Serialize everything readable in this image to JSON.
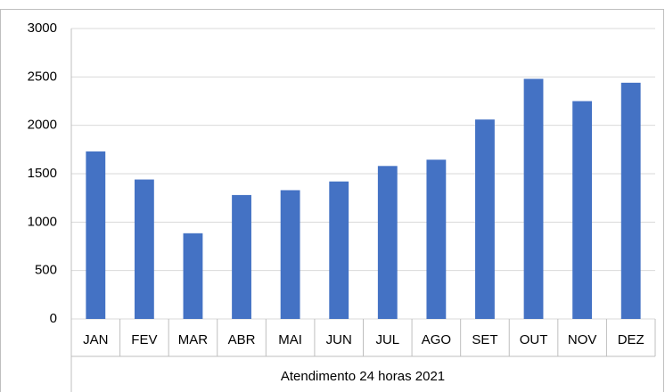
{
  "chart_data": {
    "type": "bar",
    "x_label": "Atendimento 24 horas 2021",
    "categories": [
      "JAN",
      "FEV",
      "MAR",
      "ABR",
      "MAI",
      "JUN",
      "JUL",
      "AGO",
      "SET",
      "OUT",
      "NOV",
      "DEZ"
    ],
    "values": [
      1730,
      1440,
      885,
      1280,
      1330,
      1420,
      1580,
      1645,
      2060,
      2480,
      2250,
      2440
    ],
    "color": "#4472c4",
    "ylim": [
      0,
      3000
    ],
    "yticks": [
      0,
      500,
      1000,
      1500,
      2000,
      2500,
      3000
    ],
    "grid": true
  }
}
